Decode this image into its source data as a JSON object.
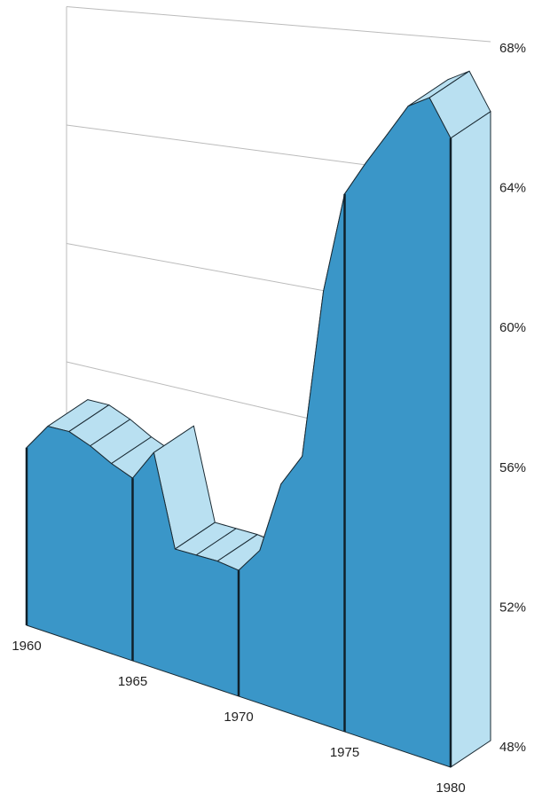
{
  "chart_data": {
    "type": "area3d",
    "categories": [
      "1960",
      null,
      null,
      null,
      null,
      "1965",
      null,
      null,
      null,
      null,
      "1970",
      null,
      null,
      null,
      null,
      "1975",
      null,
      null,
      null,
      null,
      "1980"
    ],
    "values": [
      54.0,
      54.9,
      54.9,
      54.6,
      54.2,
      53.9,
      54.9,
      52.0,
      52.0,
      52.0,
      51.9,
      52.7,
      54.9,
      55.9,
      61.0,
      64.0,
      65.0,
      65.9,
      66.8,
      67.1,
      66.0
    ],
    "color": "#3a96c8",
    "top_color": "#b9e0f1",
    "ylim": [
      48,
      68
    ],
    "yticks": [
      {
        "value": 48,
        "label": "48%"
      },
      {
        "value": 52,
        "label": "52%"
      },
      {
        "value": 56,
        "label": "56%"
      },
      {
        "value": 60,
        "label": "60%"
      },
      {
        "value": 64,
        "label": "64%"
      },
      {
        "value": 68,
        "label": "68%"
      }
    ],
    "grid": true
  }
}
